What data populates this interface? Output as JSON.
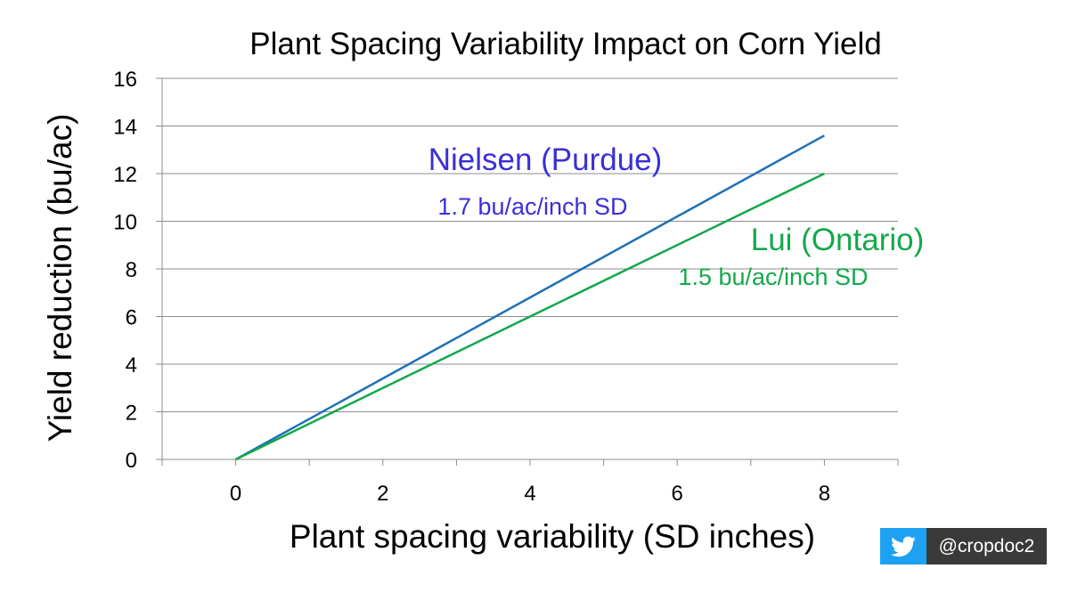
{
  "chart_data": {
    "type": "line",
    "title": "Plant Spacing Variability Impact on Corn Yield",
    "xlabel": "Plant spacing variability (SD inches)",
    "ylabel": "Yield reduction (bu/ac)",
    "xlim": [
      -1,
      9
    ],
    "ylim": [
      0,
      16
    ],
    "x_ticks": [
      0,
      2,
      4,
      6,
      8
    ],
    "y_ticks": [
      0,
      2,
      4,
      6,
      8,
      10,
      12,
      14,
      16
    ],
    "grid": "horizontal",
    "series": [
      {
        "name": "Nielsen (Purdue)",
        "slope_label": "1.7 bu/ac/inch SD",
        "color": "#1f6fb8",
        "label_color": "#3b2fd6",
        "x": [
          0,
          8
        ],
        "y": [
          0,
          13.6
        ]
      },
      {
        "name": "Lui (Ontario)",
        "slope_label": "1.5 bu/ac/inch SD",
        "color": "#14a84a",
        "label_color": "#14a84a",
        "x": [
          0,
          8
        ],
        "y": [
          0,
          12
        ]
      }
    ]
  },
  "badge": {
    "icon": "twitter-bird-icon",
    "handle": "@cropdoc2",
    "icon_bg": "#1da1f2",
    "handle_bg": "#3a3a3a"
  }
}
